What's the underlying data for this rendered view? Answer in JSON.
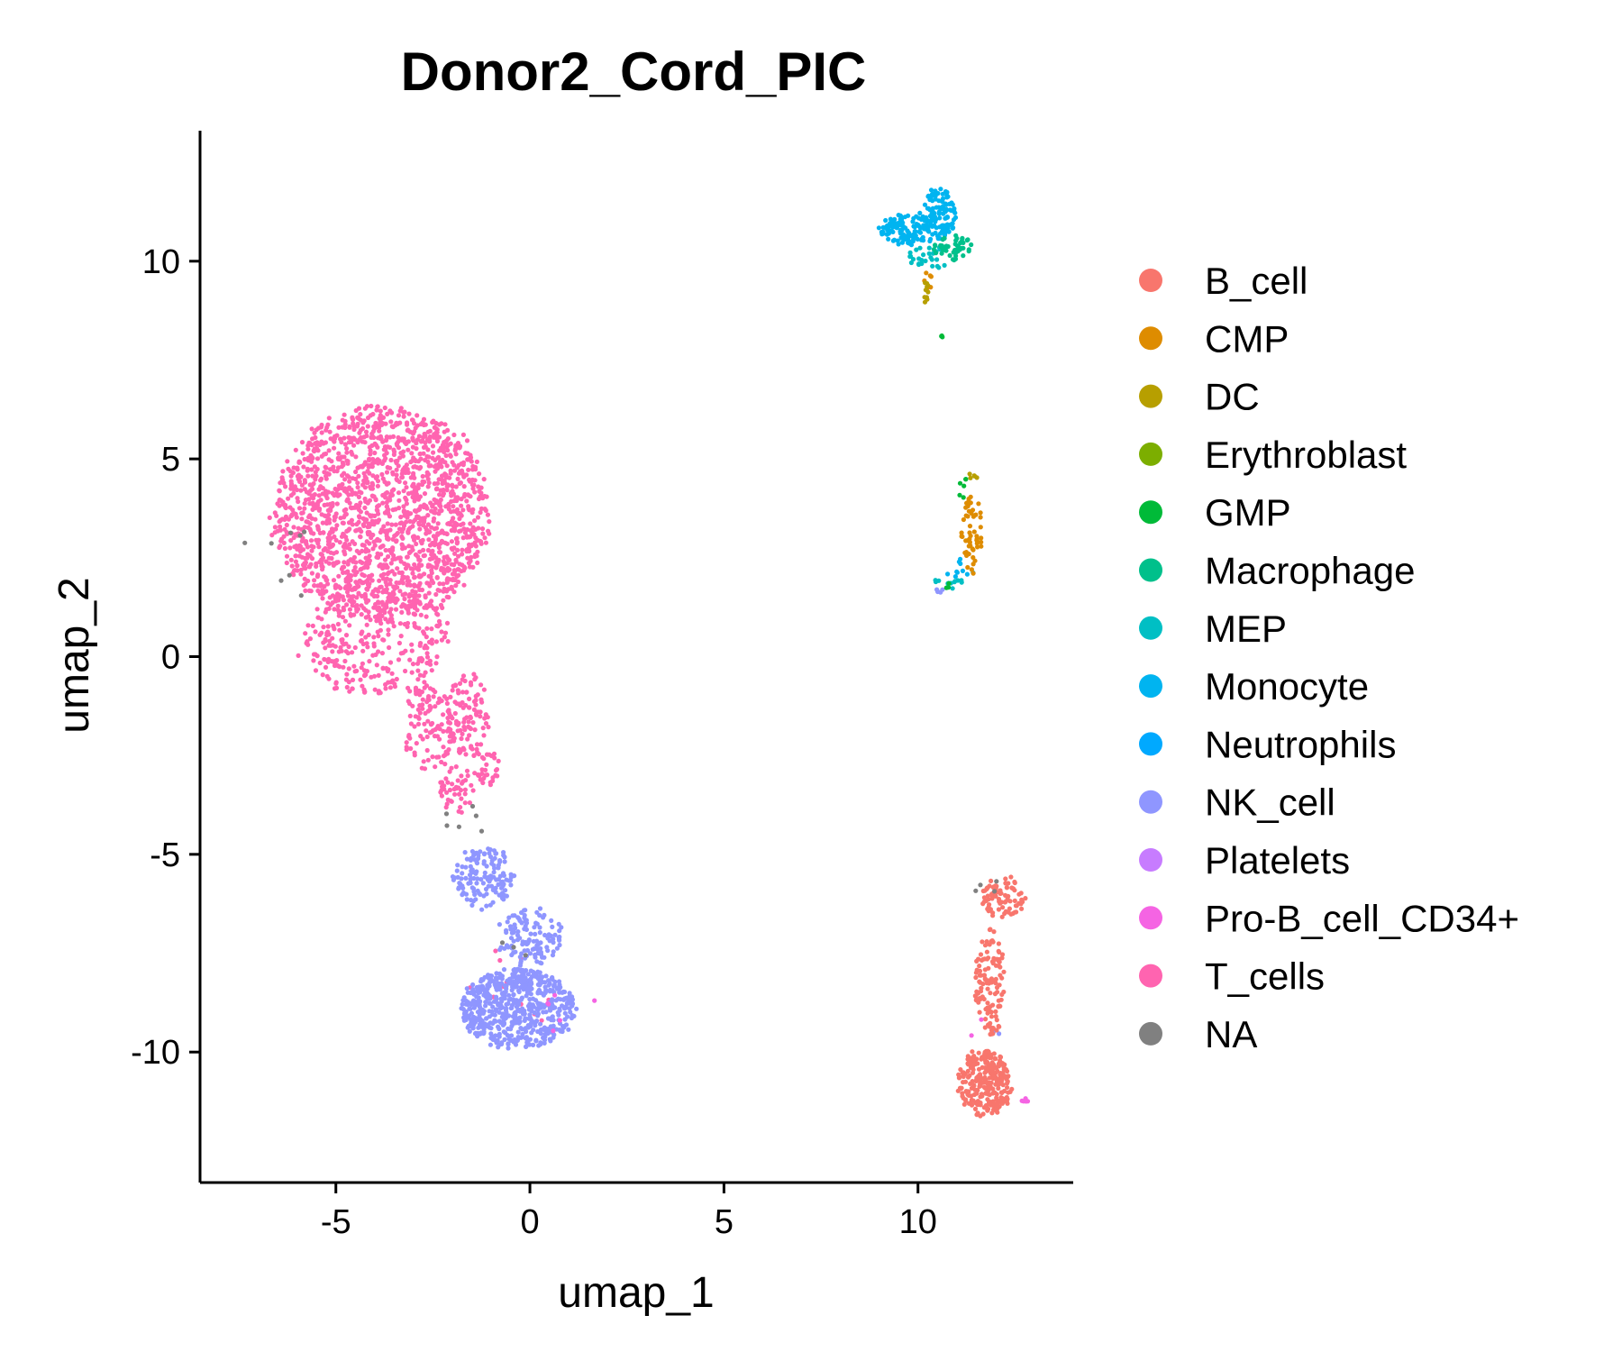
{
  "chart_data": {
    "type": "scatter",
    "title": "Donor2_Cord_PIC",
    "xlabel": "umap_1",
    "ylabel": "umap_2",
    "xlim": [
      -8.5,
      14
    ],
    "ylim": [
      -13.3,
      13.3
    ],
    "xticks": [
      -5,
      0,
      5,
      10
    ],
    "yticks": [
      -10,
      -5,
      0,
      5,
      10
    ],
    "grid": false,
    "legend_position": "right",
    "legend": [
      {
        "name": "B_cell",
        "color": "#F8766D"
      },
      {
        "name": "CMP",
        "color": "#DE8C00"
      },
      {
        "name": "DC",
        "color": "#B79F00"
      },
      {
        "name": "Erythroblast",
        "color": "#7CAE00"
      },
      {
        "name": "GMP",
        "color": "#00BA38"
      },
      {
        "name": "Macrophage",
        "color": "#00C08B"
      },
      {
        "name": "MEP",
        "color": "#00BFC4"
      },
      {
        "name": "Monocyte",
        "color": "#00B4F0"
      },
      {
        "name": "Neutrophils",
        "color": "#00A9FF"
      },
      {
        "name": "NK_cell",
        "color": "#8F96FF"
      },
      {
        "name": "Platelets",
        "color": "#C77CFF"
      },
      {
        "name": "Pro-B_cell_CD34+",
        "color": "#F564E3"
      },
      {
        "name": "T_cells",
        "color": "#FF64B0"
      },
      {
        "name": "NA",
        "color": "#808080"
      }
    ],
    "series": [
      {
        "name": "T_cells",
        "clusters": [
          {
            "cx": -3.8,
            "cy": 3.6,
            "rx": 3.0,
            "ry": 2.9,
            "n": 1750
          },
          {
            "cx": -4.0,
            "cy": 0.4,
            "rx": 2.1,
            "ry": 1.5,
            "n": 300
          },
          {
            "cx": -2.6,
            "cy": -1.8,
            "rx": 0.7,
            "ry": 1.2,
            "n": 110
          },
          {
            "cx": -1.9,
            "cy": -3.4,
            "rx": 0.5,
            "ry": 0.7,
            "n": 45
          },
          {
            "cx": -1.6,
            "cy": -1.5,
            "rx": 0.6,
            "ry": 1.2,
            "n": 100
          },
          {
            "cx": -1.1,
            "cy": -2.8,
            "rx": 0.35,
            "ry": 0.5,
            "n": 30
          },
          {
            "cx": -0.4,
            "cy": -8.5,
            "rx": 1.3,
            "ry": 1.3,
            "n": 14
          }
        ]
      },
      {
        "name": "NK_cell",
        "clusters": [
          {
            "cx": -0.3,
            "cy": -8.9,
            "rx": 1.6,
            "ry": 1.1,
            "n": 620
          },
          {
            "cx": -1.2,
            "cy": -5.6,
            "rx": 0.85,
            "ry": 0.85,
            "n": 140
          },
          {
            "cx": 0.0,
            "cy": -7.1,
            "rx": 0.9,
            "ry": 0.8,
            "n": 120
          },
          {
            "cx": 12.0,
            "cy": -9.4,
            "rx": 0.3,
            "ry": 0.3,
            "n": 2
          },
          {
            "cx": 10.6,
            "cy": 1.7,
            "rx": 0.2,
            "ry": 0.1,
            "n": 4
          }
        ]
      },
      {
        "name": "B_cell",
        "clusters": [
          {
            "cx": 11.7,
            "cy": -10.8,
            "rx": 0.75,
            "ry": 0.9,
            "n": 270
          },
          {
            "cx": 11.85,
            "cy": -8.3,
            "rx": 0.4,
            "ry": 1.6,
            "n": 120
          },
          {
            "cx": 12.2,
            "cy": -6.1,
            "rx": 0.65,
            "ry": 0.6,
            "n": 80
          }
        ]
      },
      {
        "name": "Pro-B_cell_CD34+",
        "clusters": [
          {
            "cx": 12.7,
            "cy": -11.2,
            "rx": 0.15,
            "ry": 0.1,
            "n": 6
          },
          {
            "cx": 1.0,
            "cy": -8.9,
            "rx": 0.9,
            "ry": 0.9,
            "n": 6
          },
          {
            "cx": 11.6,
            "cy": -9.5,
            "rx": 0.3,
            "ry": 0.5,
            "n": 2
          }
        ]
      },
      {
        "name": "Monocyte",
        "clusters": [
          {
            "cx": 9.9,
            "cy": 10.8,
            "rx": 1.0,
            "ry": 0.45,
            "n": 150
          },
          {
            "cx": 10.6,
            "cy": 11.3,
            "rx": 0.45,
            "ry": 0.7,
            "n": 80
          },
          {
            "cx": 11.1,
            "cy": 2.2,
            "rx": 0.4,
            "ry": 0.35,
            "n": 10
          }
        ]
      },
      {
        "name": "MEP",
        "clusters": [
          {
            "cx": 10.3,
            "cy": 10.1,
            "rx": 0.6,
            "ry": 0.35,
            "n": 30
          },
          {
            "cx": 10.8,
            "cy": 1.9,
            "rx": 0.45,
            "ry": 0.2,
            "n": 12
          }
        ]
      },
      {
        "name": "Macrophage",
        "clusters": [
          {
            "cx": 10.9,
            "cy": 10.3,
            "rx": 0.55,
            "ry": 0.4,
            "n": 50
          }
        ]
      },
      {
        "name": "CMP",
        "clusters": [
          {
            "cx": 11.4,
            "cy": 3.1,
            "rx": 0.3,
            "ry": 1.1,
            "n": 55
          },
          {
            "cx": 10.2,
            "cy": 9.6,
            "rx": 0.3,
            "ry": 0.3,
            "n": 6
          }
        ]
      },
      {
        "name": "DC",
        "clusters": [
          {
            "cx": 10.2,
            "cy": 9.2,
            "rx": 0.1,
            "ry": 0.3,
            "n": 10
          },
          {
            "cx": 11.4,
            "cy": 4.6,
            "rx": 0.15,
            "ry": 0.3,
            "n": 5
          }
        ]
      },
      {
        "name": "GMP",
        "clusters": [
          {
            "cx": 11.2,
            "cy": 4.3,
            "rx": 0.2,
            "ry": 0.4,
            "n": 6
          },
          {
            "cx": 10.6,
            "cy": 8.1,
            "rx": 0.05,
            "ry": 0.05,
            "n": 3
          },
          {
            "cx": 10.8,
            "cy": 1.8,
            "rx": 0.3,
            "ry": 0.1,
            "n": 3
          }
        ]
      },
      {
        "name": "NA",
        "clusters": [
          {
            "cx": -6.5,
            "cy": 2.0,
            "rx": 1.0,
            "ry": 2.0,
            "n": 8
          },
          {
            "cx": -1.5,
            "cy": -4.1,
            "rx": 0.8,
            "ry": 0.4,
            "n": 6
          },
          {
            "cx": 11.7,
            "cy": -5.8,
            "rx": 0.5,
            "ry": 0.2,
            "n": 4
          },
          {
            "cx": -0.5,
            "cy": -7.3,
            "rx": 0.6,
            "ry": 0.6,
            "n": 3
          }
        ]
      }
    ]
  }
}
